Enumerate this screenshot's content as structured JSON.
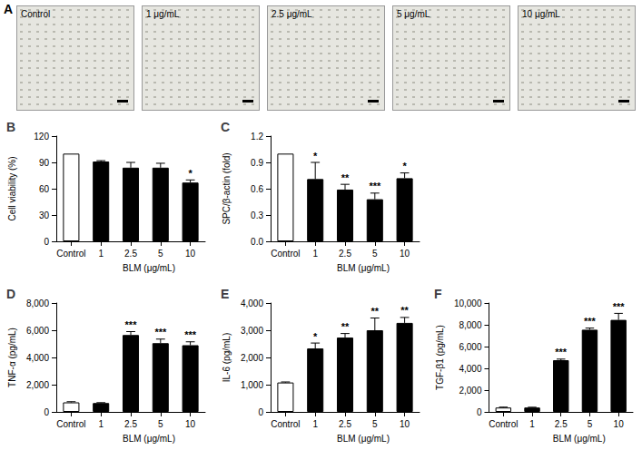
{
  "micrographs": {
    "title": "A",
    "labels": [
      "Control",
      "1 μg/mL",
      "2.5 μg/mL",
      "5 μg/mL",
      "10 μg/mL"
    ]
  },
  "chart_data": [
    {
      "type": "bar",
      "title": "B",
      "categories": [
        "Control",
        "1",
        "2.5",
        "5",
        "10"
      ],
      "values": [
        100,
        91,
        84,
        84,
        67
      ],
      "errors": [
        0,
        1,
        6,
        5,
        3
      ],
      "annotations": [
        null,
        null,
        null,
        null,
        "*"
      ],
      "colors": [
        "#ffffff",
        "#000000",
        "#000000",
        "#000000",
        "#000000"
      ],
      "xlabel": "BLM (μg/mL)",
      "ylabel": "Cell viability (%)",
      "ylim": [
        0,
        120
      ],
      "yticks": [
        0,
        30,
        60,
        90,
        120
      ],
      "grid": false
    },
    {
      "type": "bar",
      "title": "C",
      "categories": [
        "Control",
        "1",
        "2.5",
        "5",
        "10"
      ],
      "values": [
        1.0,
        0.71,
        0.59,
        0.48,
        0.72
      ],
      "errors": [
        0,
        0.19,
        0.06,
        0.07,
        0.06
      ],
      "annotations": [
        null,
        "*",
        "**",
        "***",
        "*"
      ],
      "colors": [
        "#ffffff",
        "#000000",
        "#000000",
        "#000000",
        "#000000"
      ],
      "xlabel": "BLM (μg/mL)",
      "ylabel": "SPC/β-actin (fold)",
      "ylim": [
        0,
        1.2
      ],
      "yticks": [
        {
          "value": 0,
          "label": "0.0"
        },
        0.3,
        0.6,
        0.9,
        1.2
      ],
      "grid": false
    },
    {
      "type": "bar",
      "title": "D",
      "categories": [
        "Control",
        "1",
        "2.5",
        "5",
        "10"
      ],
      "values": [
        700,
        650,
        5650,
        5050,
        4900
      ],
      "errors": [
        50,
        30,
        250,
        300,
        250
      ],
      "annotations": [
        null,
        null,
        "***",
        "***",
        "***"
      ],
      "colors": [
        "#ffffff",
        "#000000",
        "#000000",
        "#000000",
        "#000000"
      ],
      "xlabel": "BLM (μg/mL)",
      "ylabel": "TNF-α (pg/mL)",
      "ylim": [
        0,
        8000
      ],
      "yticks": [
        0,
        {
          "value": 2000,
          "label": "2,000"
        },
        {
          "value": 4000,
          "label": "4,000"
        },
        {
          "value": 6000,
          "label": "6,000"
        },
        {
          "value": 8000,
          "label": "8,000"
        }
      ],
      "grid": false
    },
    {
      "type": "bar",
      "title": "E",
      "categories": [
        "Control",
        "1",
        "2.5",
        "5",
        "10"
      ],
      "values": [
        1080,
        2330,
        2730,
        3000,
        3270
      ],
      "errors": [
        20,
        200,
        150,
        450,
        200
      ],
      "annotations": [
        null,
        "*",
        "**",
        "**",
        "**"
      ],
      "colors": [
        "#ffffff",
        "#000000",
        "#000000",
        "#000000",
        "#000000"
      ],
      "xlabel": "BLM (μg/mL)",
      "ylabel": "IL-6 (pg/mL)",
      "ylim": [
        0,
        4000
      ],
      "yticks": [
        0,
        {
          "value": 1000,
          "label": "1,000"
        },
        {
          "value": 2000,
          "label": "2,000"
        },
        {
          "value": 3000,
          "label": "3,000"
        },
        {
          "value": 4000,
          "label": "4,000"
        }
      ],
      "grid": false
    },
    {
      "type": "bar",
      "title": "F",
      "categories": [
        "Control",
        "1",
        "2.5",
        "5",
        "10"
      ],
      "values": [
        400,
        400,
        4750,
        7550,
        8450
      ],
      "errors": [
        40,
        30,
        100,
        150,
        600
      ],
      "annotations": [
        null,
        null,
        "***",
        "***",
        "***"
      ],
      "colors": [
        "#ffffff",
        "#000000",
        "#000000",
        "#000000",
        "#000000"
      ],
      "xlabel": "BLM (μg/mL)",
      "ylabel": "TGF-β1 (pg/mL)",
      "ylim": [
        0,
        10000
      ],
      "yticks": [
        0,
        {
          "value": 2000,
          "label": "2,000"
        },
        {
          "value": 4000,
          "label": "4,000"
        },
        {
          "value": 6000,
          "label": "6,000"
        },
        {
          "value": 8000,
          "label": "8,000"
        },
        {
          "value": 10000,
          "label": "10,000"
        }
      ],
      "grid": false
    }
  ]
}
